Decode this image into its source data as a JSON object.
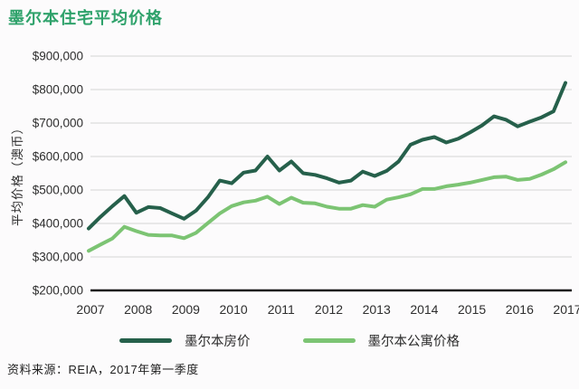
{
  "page": {
    "title": "墨尔本住宅平均价格",
    "source": "资料来源：REIA，2017年第一季度"
  },
  "colors": {
    "title": "#2fa26b",
    "house_line": "#26604b",
    "apartment_line": "#7cc473",
    "grid": "#dcdcdc",
    "axis": "#1a1a1a",
    "tick_text": "#2e2e2e"
  },
  "legend": {
    "items": [
      {
        "label": "墨尔本房价",
        "color": "#26604b"
      },
      {
        "label": "墨尔本公寓价格",
        "color": "#7cc473"
      }
    ]
  },
  "chart_data": {
    "type": "line",
    "title": "墨尔本住宅平均价格",
    "ylabel": "平均价格（澳币）",
    "xlabel": "",
    "grid": "horizontal",
    "legend_position": "bottom",
    "x_frequency": "quarterly",
    "x_range": [
      "2007 Q1",
      "2017 Q1"
    ],
    "x_tick_labels": [
      "2007",
      "2008",
      "2009",
      "2010",
      "2011",
      "2012",
      "2013",
      "2014",
      "2015",
      "2016",
      "2017"
    ],
    "ylim": [
      200000,
      900000
    ],
    "y_tick_values": [
      900000,
      800000,
      700000,
      600000,
      500000,
      400000,
      300000,
      200000
    ],
    "y_tick_labels": [
      "$900,000",
      "$800,000",
      "$700,000",
      "$600,000",
      "$500,000",
      "$400,000",
      "$300,000",
      "$200,000"
    ],
    "series": [
      {
        "name": "墨尔本房价",
        "color": "#26604b",
        "values": [
          385000,
          420000,
          452000,
          482000,
          432000,
          449000,
          446000,
          430000,
          414000,
          438000,
          478000,
          528000,
          520000,
          552000,
          558000,
          600000,
          558000,
          585000,
          550000,
          545000,
          535000,
          522000,
          528000,
          555000,
          542000,
          557000,
          585000,
          635000,
          650000,
          658000,
          642000,
          653000,
          672000,
          693000,
          720000,
          710000,
          690000,
          704000,
          717000,
          735000,
          820000
        ]
      },
      {
        "name": "墨尔本公寓价格",
        "color": "#7cc473",
        "values": [
          318000,
          337000,
          355000,
          390000,
          377000,
          366000,
          364000,
          364000,
          356000,
          372000,
          401000,
          430000,
          452000,
          463000,
          468000,
          480000,
          458000,
          477000,
          462000,
          460000,
          450000,
          444000,
          444000,
          455000,
          450000,
          471000,
          478000,
          487000,
          503000,
          503000,
          511000,
          516000,
          522000,
          530000,
          538000,
          540000,
          530000,
          533000,
          546000,
          562000,
          583000
        ]
      }
    ]
  }
}
